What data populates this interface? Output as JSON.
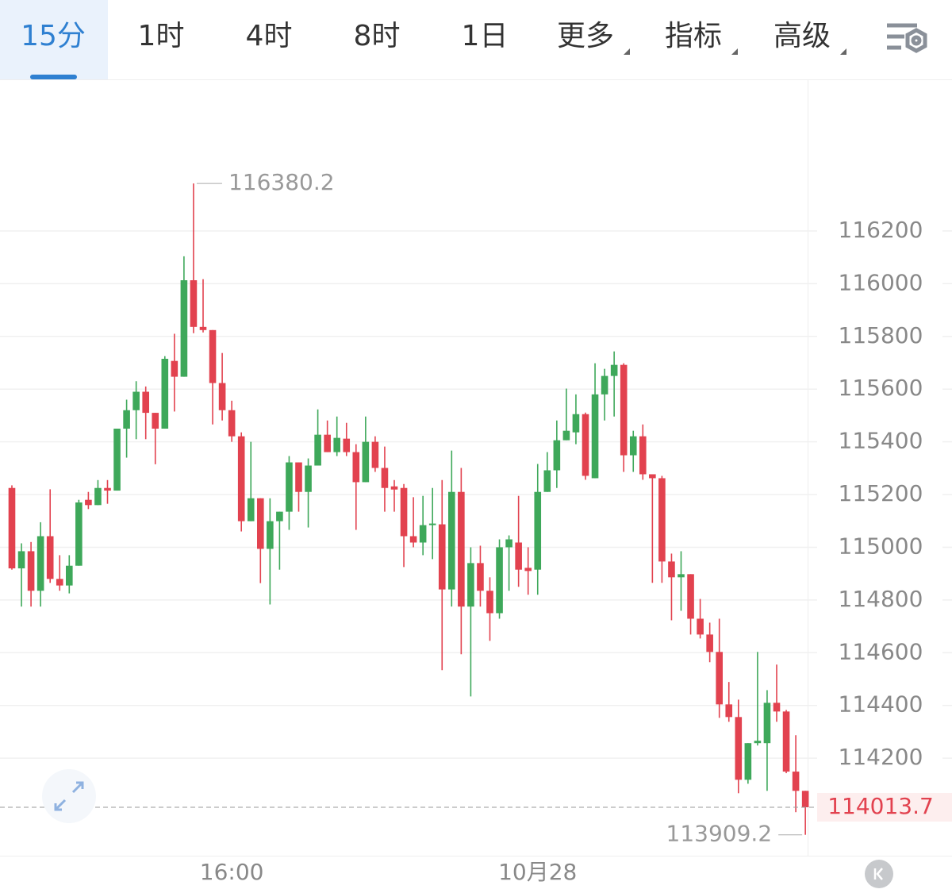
{
  "tabs": [
    {
      "label": "15分",
      "active": true
    },
    {
      "label": "1时",
      "active": false
    },
    {
      "label": "4时",
      "active": false
    },
    {
      "label": "8时",
      "active": false
    },
    {
      "label": "1日",
      "active": false
    },
    {
      "label": "更多",
      "active": false,
      "dropdown": true
    },
    {
      "label": "指标",
      "active": false,
      "dropdown": true
    },
    {
      "label": "高级",
      "active": false,
      "dropdown": true
    }
  ],
  "chart_data": {
    "type": "candlestick",
    "up_color": "#3ea85a",
    "down_color": "#e2424f",
    "categories": [
      null,
      null,
      null,
      null,
      null,
      null,
      null,
      null,
      null,
      null,
      null,
      null,
      null,
      null,
      null,
      null,
      null,
      null,
      null,
      null,
      null,
      null,
      null,
      "16:00",
      null,
      null,
      null,
      null,
      null,
      null,
      null,
      null,
      null,
      null,
      null,
      null,
      null,
      null,
      null,
      null,
      null,
      null,
      null,
      null,
      null,
      null,
      null,
      null,
      null,
      null,
      null,
      null,
      null,
      null,
      null,
      "10月28",
      null,
      null,
      null,
      null,
      null,
      null,
      null,
      null,
      null,
      null,
      null,
      null,
      null,
      null,
      null,
      null,
      null,
      null,
      null,
      null,
      null,
      null,
      null,
      null,
      null,
      null,
      null,
      null
    ],
    "open": [
      115225,
      114920,
      114985,
      114835,
      115042,
      114880,
      114855,
      114930,
      115180,
      115160,
      115225,
      115215,
      115450,
      115520,
      115590,
      115510,
      115450,
      115707,
      115647,
      116013,
      115836,
      115824,
      115623,
      115520,
      115421,
      115099,
      115186,
      114994,
      115099,
      115135,
      115322,
      115210,
      115310,
      115427,
      115361,
      115412,
      115361,
      115247,
      115400,
      115301,
      115231,
      115225,
      115042,
      115018,
      115084,
      115087,
      114840,
      115210,
      114775,
      114940,
      114835,
      114750,
      115000,
      115018,
      114922,
      114915,
      115210,
      115292,
      115406,
      115436,
      115505,
      115262,
      115580,
      115650,
      115692,
      115349,
      115421,
      115277,
      115262,
      114946,
      114886,
      114898,
      114729,
      114669,
      114603,
      114404,
      114356,
      114118,
      114257,
      114257,
      114410,
      114377,
      114149,
      114076
    ],
    "high": [
      115235,
      115015,
      115020,
      115095,
      115220,
      114970,
      114970,
      115180,
      115210,
      115255,
      115255,
      115450,
      115560,
      115630,
      115610,
      115510,
      115725,
      115810,
      116104,
      116380.2,
      116017,
      115824,
      115737,
      115556,
      115436,
      115400,
      115186,
      115186,
      115135,
      115346,
      115322,
      115337,
      115523,
      115481,
      115496,
      115472,
      115391,
      115496,
      115421,
      115382,
      115255,
      115240,
      115190,
      115195,
      115225,
      115255,
      115367,
      115301,
      115000,
      115006,
      114886,
      115030,
      115045,
      115195,
      115000,
      115316,
      115361,
      115481,
      115602,
      115580,
      115511,
      115698,
      115677,
      115743,
      115698,
      115442,
      115466,
      115277,
      115271,
      114976,
      114985,
      114898,
      114804,
      114714,
      114729,
      114489,
      114422,
      114257,
      114603,
      114458,
      114555,
      114383,
      114287,
      114076
    ],
    "low": [
      114915,
      114775,
      114775,
      114775,
      114865,
      114835,
      114825,
      114930,
      115145,
      115160,
      115165,
      115215,
      115340,
      115410,
      115410,
      115315,
      115450,
      115515,
      115647,
      115812,
      115815,
      115466,
      115481,
      115400,
      115060,
      115099,
      114864,
      114783,
      114915,
      115066,
      115135,
      115075,
      115310,
      115361,
      115346,
      115346,
      115066,
      115247,
      115286,
      115135,
      115135,
      114925,
      115000,
      114970,
      114955,
      114534,
      114775,
      114594,
      114434,
      114775,
      114645,
      114729,
      114835,
      114850,
      114820,
      114820,
      115210,
      115225,
      115406,
      115391,
      115256,
      115262,
      115481,
      115496,
      115286,
      115286,
      115256,
      114865,
      114865,
      114723,
      114759,
      114669,
      114654,
      114564,
      114353,
      114338,
      114067,
      114103,
      114248,
      114076,
      114338,
      114143,
      113995,
      113909.2
    ],
    "close": [
      114920,
      114985,
      114835,
      115042,
      114880,
      114855,
      114930,
      115170,
      115160,
      115225,
      115215,
      115450,
      115520,
      115590,
      115510,
      115450,
      115715,
      115647,
      116013,
      115836,
      115824,
      115623,
      115520,
      115421,
      115099,
      115186,
      114994,
      115099,
      115135,
      115322,
      115210,
      115310,
      115427,
      115361,
      115415,
      115361,
      115247,
      115400,
      115301,
      115225,
      115219,
      115042,
      115018,
      115084,
      115090,
      114840,
      115210,
      114775,
      114940,
      114835,
      114750,
      115000,
      115030,
      114915,
      114910,
      115210,
      115292,
      115406,
      115442,
      115505,
      115271,
      115580,
      115650,
      115692,
      115349,
      115421,
      115277,
      115262,
      114946,
      114886,
      114898,
      114729,
      114669,
      114603,
      114404,
      114356,
      114118,
      114257,
      114266,
      114410,
      114377,
      114149,
      114076,
      114013.7
    ],
    "ylim": [
      113830,
      116775
    ],
    "yticks": [
      114200,
      114400,
      114600,
      114800,
      115000,
      115200,
      115400,
      115600,
      115800,
      116000,
      116200
    ],
    "grid": true
  }
}
